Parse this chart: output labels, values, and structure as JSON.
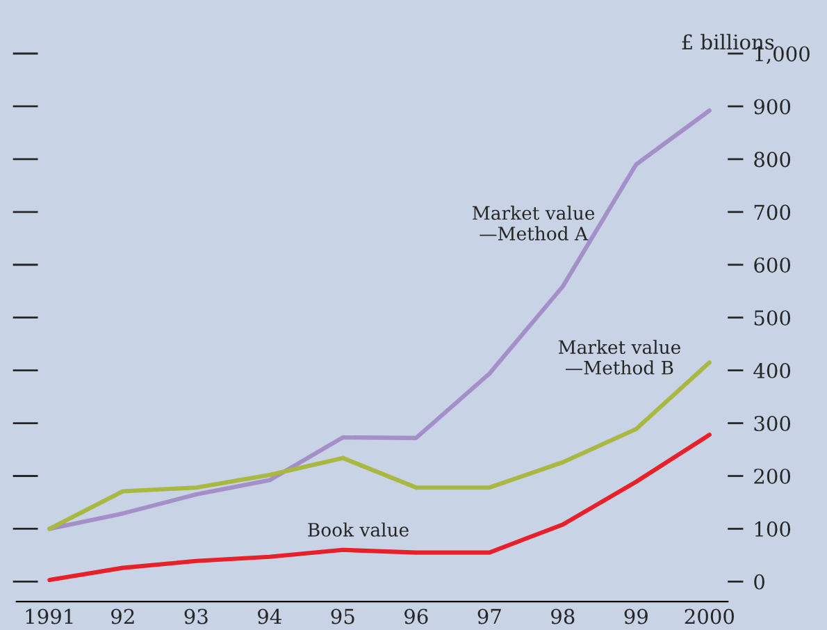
{
  "chart_data": {
    "type": "line",
    "ylabel": "£ billions",
    "x": [
      1991,
      1992,
      1993,
      1994,
      1995,
      1996,
      1997,
      1998,
      1999,
      2000
    ],
    "xlim": [
      1990.55,
      2000.25
    ],
    "xticks": [
      {
        "value": 1991,
        "label": "1991"
      },
      {
        "value": 1992,
        "label": "92"
      },
      {
        "value": 1993,
        "label": "93"
      },
      {
        "value": 1994,
        "label": "94"
      },
      {
        "value": 1995,
        "label": "95"
      },
      {
        "value": 1996,
        "label": "96"
      },
      {
        "value": 1997,
        "label": "97"
      },
      {
        "value": 1998,
        "label": "98"
      },
      {
        "value": 1999,
        "label": "99"
      },
      {
        "value": 2000,
        "label": "2000"
      }
    ],
    "ylim": [
      -38,
      1000
    ],
    "yticks": [
      0,
      100,
      200,
      300,
      400,
      500,
      600,
      700,
      800,
      900,
      {
        "value": 1000,
        "label": "1,000"
      }
    ],
    "series": [
      {
        "name": "Market value\n—Method A",
        "color": "#a58fc8",
        "values": [
          100,
          129,
          165,
          192,
          273,
          272,
          394,
          559,
          790,
          892
        ]
      },
      {
        "name": "Market value\n—Method B",
        "color": "#a8b840",
        "values": [
          100,
          171,
          178,
          202,
          234,
          178,
          178,
          226,
          289,
          415
        ]
      },
      {
        "name": "Book value",
        "color": "#e8202a",
        "values": [
          3,
          26,
          39,
          47,
          60,
          55,
          55,
          108,
          189,
          278
        ]
      }
    ],
    "grid": false,
    "legend": false,
    "marker": "none",
    "line_style": "solid"
  }
}
